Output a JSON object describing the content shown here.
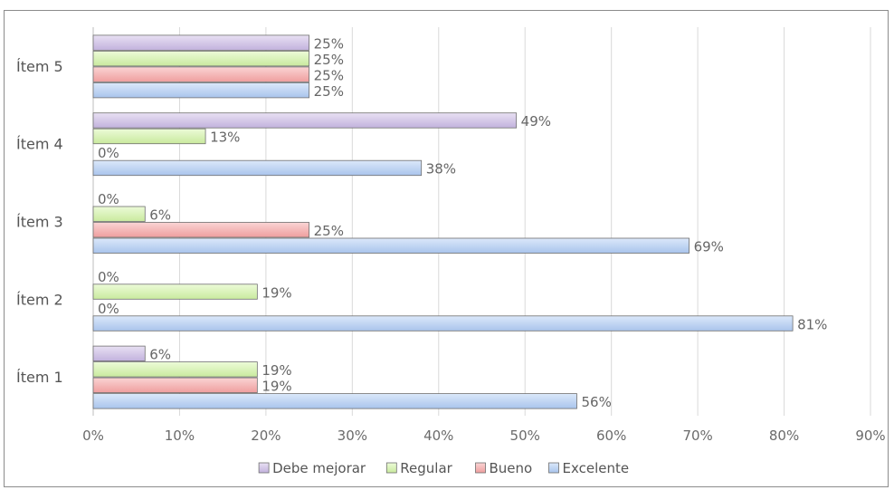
{
  "chart_data": {
    "type": "bar",
    "orientation": "horizontal",
    "categories": [
      "Ítem 1",
      "Ítem 2",
      "Ítem 3",
      "Ítem 4",
      "Ítem 5"
    ],
    "xlim": [
      0,
      90
    ],
    "x_ticks": [
      "0%",
      "10%",
      "20%",
      "30%",
      "40%",
      "50%",
      "60%",
      "70%",
      "80%",
      "90%"
    ],
    "grid": true,
    "legend_position": "bottom",
    "series": [
      {
        "name": "Excelente",
        "color": "#b8d0f0",
        "values": [
          56,
          81,
          69,
          38,
          25
        ],
        "labels": [
          "56%",
          "81%",
          "69%",
          "38%",
          "25%"
        ]
      },
      {
        "name": "Bueno",
        "color": "#f4b6b6",
        "values": [
          19,
          0,
          25,
          0,
          25
        ],
        "labels": [
          "19%",
          "0%",
          "25%",
          "0%",
          "25%"
        ]
      },
      {
        "name": "Regular",
        "color": "#d6f0b8",
        "values": [
          19,
          19,
          6,
          13,
          25
        ],
        "labels": [
          "19%",
          "19%",
          "6%",
          "13%",
          "25%"
        ]
      },
      {
        "name": "Debe mejorar",
        "color": "#d4c8e6",
        "values": [
          6,
          0,
          0,
          49,
          25
        ],
        "labels": [
          "6%",
          "0%",
          "0%",
          "49%",
          "25%"
        ]
      }
    ],
    "legend_order": [
      "Debe mejorar",
      "Regular",
      "Bueno",
      "Excelente"
    ]
  }
}
